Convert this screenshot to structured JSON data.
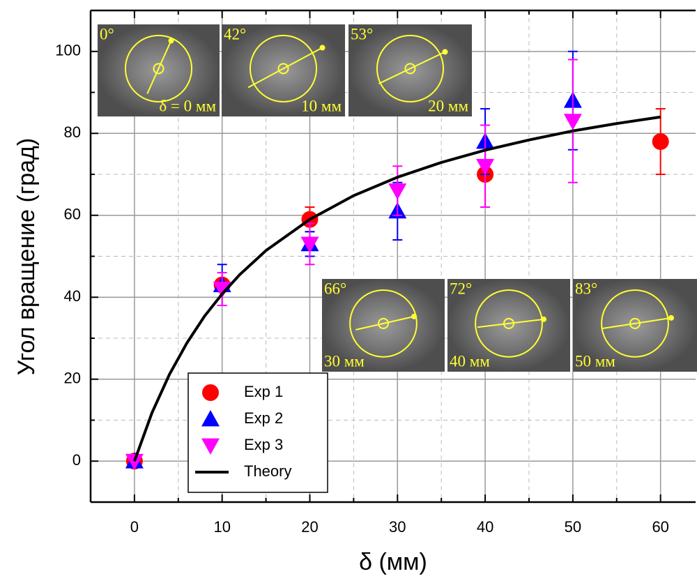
{
  "chart_data": {
    "type": "scatter",
    "x_label": "δ (мм)",
    "y_label": "Угол вращение (град)",
    "xlim": [
      -5,
      64
    ],
    "ylim": [
      -10,
      110
    ],
    "xticks": [
      0,
      10,
      20,
      30,
      40,
      50,
      60
    ],
    "yticks": [
      0,
      20,
      40,
      60,
      80,
      100
    ],
    "grid": true,
    "minor_grid": true,
    "legend": "lower left",
    "series": [
      {
        "name": "Exp 1",
        "color": "#ff0000",
        "marker": "circle",
        "x": [
          0,
          10,
          20,
          40,
          60
        ],
        "values": [
          0,
          43,
          59,
          70,
          78
        ],
        "errors": [
          0,
          0,
          3,
          8,
          8
        ]
      },
      {
        "name": "Exp 2",
        "color": "#0000ff",
        "marker": "triangle-up",
        "x": [
          0,
          10,
          20,
          30,
          40,
          50
        ],
        "values": [
          0,
          43,
          53,
          61,
          78,
          88
        ],
        "errors": [
          0,
          5,
          3,
          7,
          8,
          12
        ]
      },
      {
        "name": "Exp 3",
        "color": "#ff00ff",
        "marker": "triangle-down",
        "x": [
          0,
          10,
          20,
          30,
          40,
          50
        ],
        "values": [
          0,
          42,
          53,
          66,
          72,
          83
        ],
        "errors": [
          0,
          4,
          5,
          6,
          10,
          15
        ]
      },
      {
        "name": "Theory",
        "color": "#000000",
        "marker": "line",
        "x": [
          0,
          2,
          4,
          6,
          8,
          10,
          12,
          15,
          20,
          25,
          30,
          35,
          40,
          45,
          50,
          55,
          60
        ],
        "values": [
          0,
          11.8,
          21.2,
          28.9,
          35.4,
          40.8,
          45.5,
          51.4,
          59.0,
          64.8,
          69.3,
          72.9,
          75.9,
          78.4,
          80.6,
          82.4,
          84.0
        ]
      }
    ],
    "insets": [
      {
        "angle": "0°",
        "distance": "δ = 0 мм"
      },
      {
        "angle": "42°",
        "distance": "10 мм"
      },
      {
        "angle": "53°",
        "distance": "20 мм"
      },
      {
        "angle": "66°",
        "distance": "30 мм"
      },
      {
        "angle": "72°",
        "distance": "40 мм"
      },
      {
        "angle": "83°",
        "distance": "50 мм"
      }
    ]
  }
}
